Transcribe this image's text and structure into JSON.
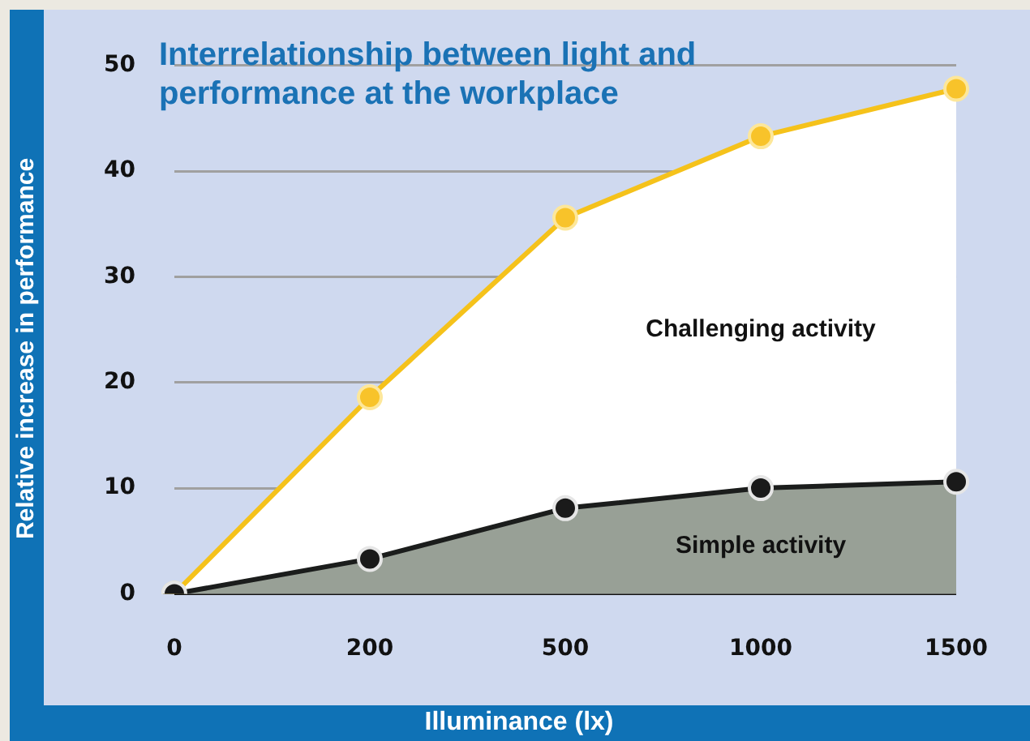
{
  "chart_data": {
    "type": "area",
    "title": "Interrelationship between light and performance at the workplace",
    "xlabel": "Illuminance (lx)",
    "ylabel": "Relative increase in performance",
    "categories": [
      "0",
      "200",
      "500",
      "1000",
      "1500"
    ],
    "series": [
      {
        "name": "Challenging activity",
        "color": "#f5c21b",
        "values": [
          0,
          18.6,
          35.6,
          43.3,
          47.8
        ]
      },
      {
        "name": "Simple activity",
        "color": "#1b1d1c",
        "values": [
          0,
          3.3,
          8.1,
          10.0,
          10.6
        ]
      }
    ],
    "ylim": [
      0,
      50
    ],
    "yticks": [
      0,
      10,
      20,
      30,
      40,
      50
    ],
    "grid": "y",
    "legend": false,
    "marker": "circle",
    "line_style": "solid"
  }
}
